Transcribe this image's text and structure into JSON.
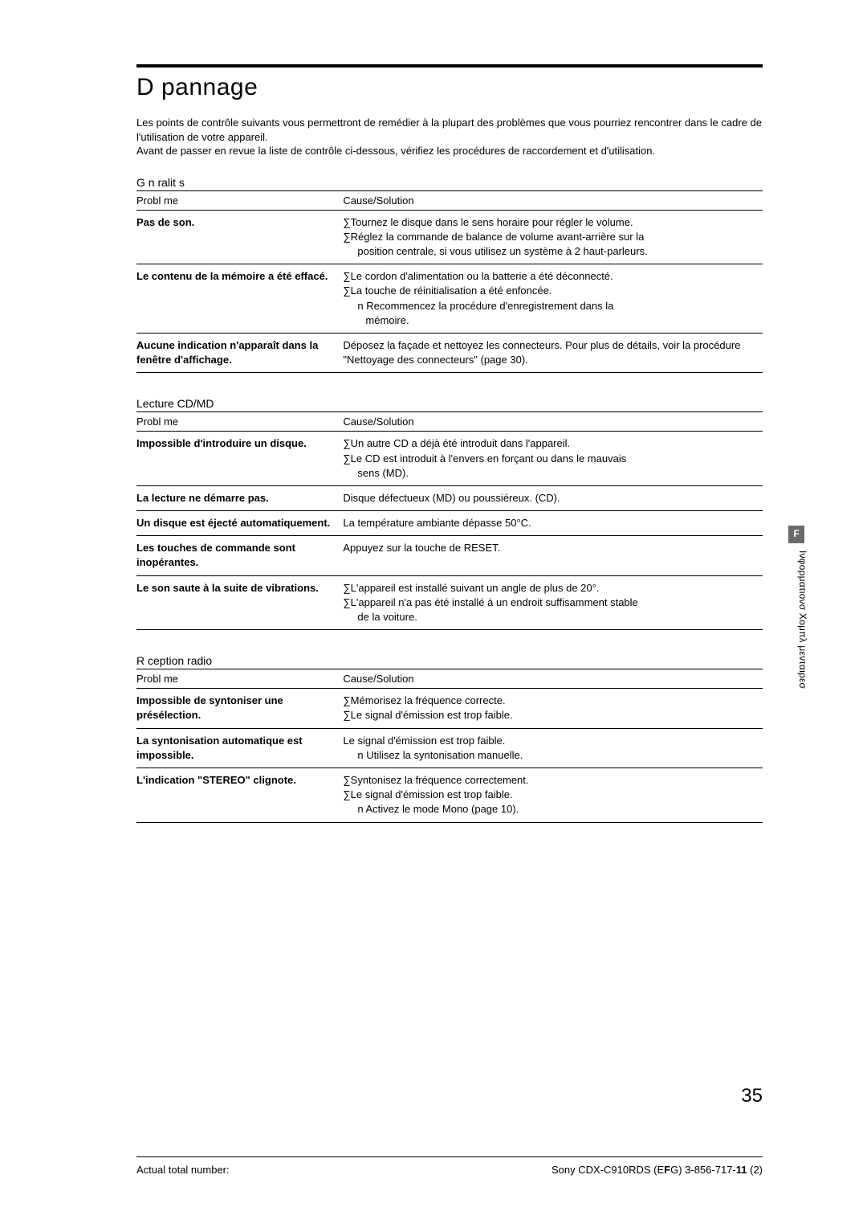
{
  "title": "D pannage",
  "intro_line1": "Les points de contrôle suivants vous permettront de remédier à la plupart des problèmes que vous pourriez rencontrer dans le cadre de l'utilisation de votre appareil.",
  "intro_line2": "Avant de passer en revue la liste de contrôle ci-dessous, vérifiez les procédures de raccordement et d'utilisation.",
  "header_problem": "Probl me",
  "header_solution": "Cause/Solution",
  "sections": {
    "general": {
      "label": "G n ralit s",
      "rows": [
        {
          "problem": "Pas de son.",
          "sol1": "∑Tournez le disque dans le sens horaire pour régler le volume.",
          "sol2": "∑Réglez la commande de balance de volume avant-arrière sur la",
          "sol2b": "position centrale, si vous utilisez un système à 2 haut-parleurs."
        },
        {
          "problem": "Le contenu de la mémoire a été effacé.",
          "sol1": "∑Le cordon d'alimentation ou la batterie a été déconnecté.",
          "sol2": "∑La touche de réinitialisation a été enfoncée.",
          "sol3": "n   Recommencez la procédure d'enregistrement dans la",
          "sol3b": "mémoire."
        },
        {
          "problem": "Aucune indication n'apparaît dans la fenêtre d'affichage.",
          "sol1": "Déposez la façade et nettoyez les connecteurs. Pour plus de détails, voir la procédure \"Nettoyage des connecteurs\" (page 30)."
        }
      ]
    },
    "lecture": {
      "label": "Lecture CD/MD",
      "rows": [
        {
          "problem": "Impossible d'introduire un disque.",
          "sol1": "∑Un autre CD a déjà été introduit dans l'appareil.",
          "sol2": "∑Le CD est introduit à l'envers en forçant ou dans le mauvais",
          "sol2b": "sens (MD)."
        },
        {
          "problem": "La lecture ne démarre pas.",
          "sol1": "Disque défectueux (MD) ou poussiéreux. (CD)."
        },
        {
          "problem": "Un disque est éjecté automatiquement.",
          "sol1": "La température ambiante dépasse 50°C."
        },
        {
          "problem": "Les touches de commande sont inopérantes.",
          "sol1": "Appuyez sur la touche de RESET."
        },
        {
          "problem": "Le son saute à la suite de vibrations.",
          "sol1": "∑L'appareil est installé suivant un angle de plus de 20°.",
          "sol2": "∑L'appareil n'a pas été installé à un endroit suffisamment stable",
          "sol2b": "de la voiture."
        }
      ]
    },
    "reception": {
      "label": "R ception radio",
      "rows": [
        {
          "problem": "Impossible de syntoniser une présélection.",
          "sol1": "∑Mémorisez la fréquence correcte.",
          "sol2": "∑Le signal d'émission est trop faible."
        },
        {
          "problem": "La syntonisation automatique est impossible.",
          "sol1": "Le signal d'émission est trop faible.",
          "sol2": "n   Utilisez la syntonisation manuelle."
        },
        {
          "problem": "L'indication \"STEREO\" clignote.",
          "sol1": "∑Syntonisez la fréquence correctement.",
          "sol2": "∑Le signal d'émission est trop faible.",
          "sol3": "n   Activez le mode Mono (page 10)."
        }
      ]
    }
  },
  "side_tab": "F",
  "side_text": "Ινφορματιονσ Χομπλ μενταιρεσ",
  "page_number": "35",
  "footer_left": "Actual total number:",
  "footer_right_a": "Sony CDX-C910RDS (E",
  "footer_right_b": "F",
  "footer_right_c": "G)  3-856-717-",
  "footer_right_d": "11",
  "footer_right_e": " (2)"
}
